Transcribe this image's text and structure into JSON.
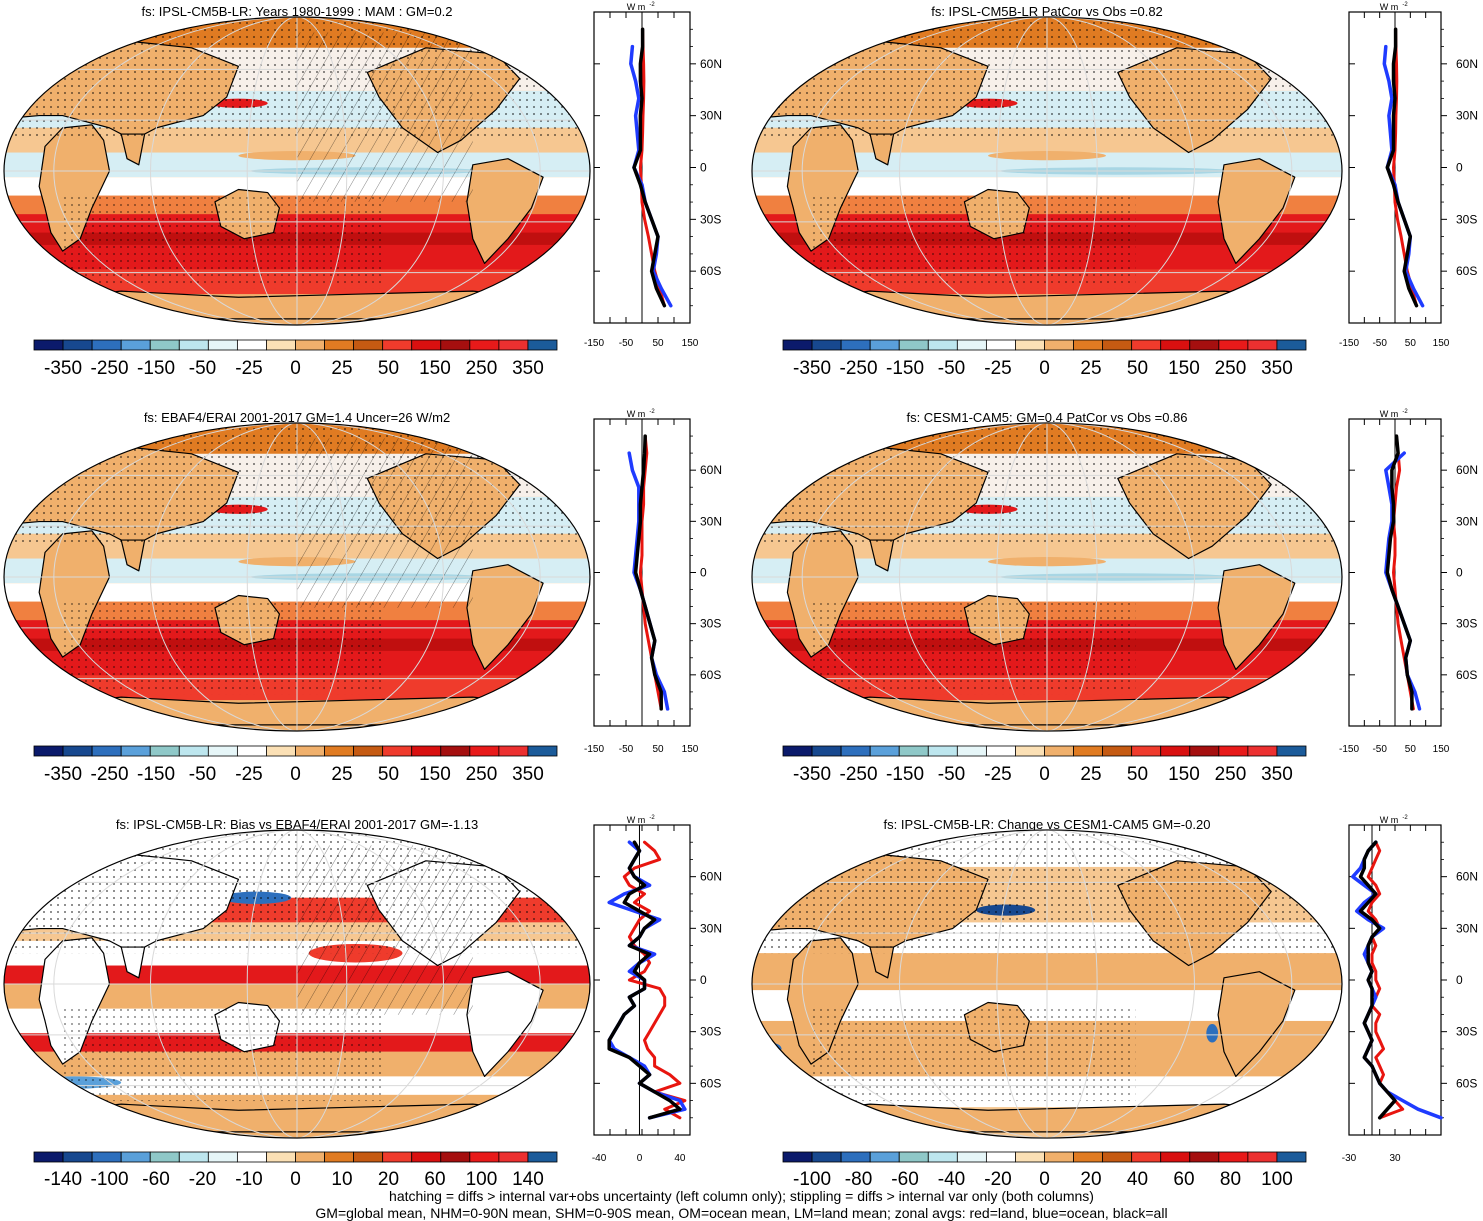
{
  "colors": {
    "blue": "#1f3bff",
    "red": "#e8150f",
    "black": "#000000",
    "scale_7": [
      "#0b1a6b",
      "#17488f",
      "#2d6fbd",
      "#5aa0da",
      "#8fc8c8",
      "#bde6ee",
      "#e6f6f8",
      "#ffffff",
      "#fbe0b5",
      "#f0b06c",
      "#e07b22",
      "#c55a12",
      "#ef3b2c",
      "#d91010",
      "#a50f0f",
      "#e81a1a",
      "#ec3030",
      "#1b5b9a"
    ]
  },
  "panels": [
    {
      "id": "top-left",
      "title": "fs: IPSL-CM5B-LR: Years 1980-1999 : MAM : GM=0.2",
      "colorbar_labels": [
        "-350",
        "-250",
        "-150",
        "-50",
        "-25",
        "0",
        "25",
        "50",
        "150",
        "250",
        "350"
      ],
      "zonal_ticks": [
        "-150",
        "-50",
        "50",
        "150"
      ],
      "zonal_range": [
        -150,
        150
      ],
      "pattern": "mean",
      "hatched": true,
      "stippled": true,
      "zonal": {
        "lat": [
          80,
          70,
          60,
          50,
          40,
          30,
          20,
          10,
          0,
          -10,
          -20,
          -30,
          -40,
          -50,
          -60,
          -70,
          -80
        ],
        "land": [
          2,
          3,
          5,
          6,
          5,
          3,
          2,
          0,
          -5,
          -2,
          0,
          8,
          20,
          30,
          40,
          55,
          70
        ],
        "ocean": [
          null,
          -30,
          -35,
          -20,
          -10,
          -20,
          -15,
          -10,
          -25,
          0,
          10,
          30,
          50,
          45,
          35,
          60,
          90
        ],
        "all": [
          2,
          2,
          -5,
          -5,
          0,
          -5,
          -5,
          -5,
          -25,
          -5,
          10,
          30,
          50,
          40,
          30,
          45,
          70
        ]
      }
    },
    {
      "id": "top-right",
      "title": "fs: IPSL-CM5B-LR PatCor vs Obs =0.82",
      "colorbar_labels": [
        "-350",
        "-250",
        "-150",
        "-50",
        "-25",
        "0",
        "25",
        "50",
        "150",
        "250",
        "350"
      ],
      "zonal_ticks": [
        "-150",
        "-50",
        "50",
        "150"
      ],
      "zonal_range": [
        -150,
        150
      ],
      "pattern": "mean",
      "hatched": false,
      "stippled": true,
      "zonal": {
        "lat": [
          80,
          70,
          60,
          50,
          40,
          30,
          20,
          10,
          0,
          -10,
          -20,
          -30,
          -40,
          -50,
          -60,
          -70,
          -80
        ],
        "land": [
          2,
          3,
          5,
          6,
          5,
          3,
          2,
          0,
          -5,
          -2,
          0,
          8,
          20,
          30,
          40,
          55,
          70
        ],
        "ocean": [
          null,
          -30,
          -35,
          -20,
          -10,
          -20,
          -15,
          -10,
          -25,
          0,
          10,
          30,
          50,
          45,
          35,
          60,
          90
        ],
        "all": [
          2,
          2,
          -5,
          -5,
          0,
          -5,
          -5,
          -5,
          -25,
          -5,
          10,
          30,
          50,
          40,
          30,
          45,
          70
        ]
      }
    },
    {
      "id": "middle-left",
      "title": "fs: EBAF4/ERAI 2001-2017 GM=1.4 Uncer=26 W/m2",
      "colorbar_labels": [
        "-350",
        "-250",
        "-150",
        "-50",
        "-25",
        "0",
        "25",
        "50",
        "150",
        "250",
        "350"
      ],
      "zonal_ticks": [
        "-150",
        "-50",
        "50",
        "150"
      ],
      "zonal_range": [
        -150,
        150
      ],
      "pattern": "mean",
      "hatched": true,
      "stippled": true,
      "zonal": {
        "lat": [
          80,
          70,
          60,
          50,
          40,
          30,
          20,
          10,
          0,
          -10,
          -20,
          -30,
          -40,
          -50,
          -60,
          -70,
          -80
        ],
        "land": [
          10,
          15,
          10,
          5,
          5,
          0,
          0,
          0,
          -5,
          0,
          5,
          10,
          20,
          30,
          40,
          50,
          60
        ],
        "ocean": [
          null,
          -40,
          -30,
          -10,
          -10,
          -10,
          -15,
          -20,
          -25,
          -5,
          10,
          25,
          40,
          30,
          45,
          70,
          80
        ],
        "all": [
          10,
          8,
          5,
          0,
          -5,
          -5,
          -10,
          -15,
          -20,
          -5,
          10,
          25,
          40,
          30,
          40,
          60,
          60
        ]
      }
    },
    {
      "id": "middle-right",
      "title": "fs: CESM1-CAM5: GM=0.4 PatCor vs Obs =0.86",
      "colorbar_labels": [
        "-350",
        "-250",
        "-150",
        "-50",
        "-25",
        "0",
        "25",
        "50",
        "150",
        "250",
        "350"
      ],
      "zonal_ticks": [
        "-150",
        "-50",
        "50",
        "150"
      ],
      "zonal_range": [
        -150,
        150
      ],
      "pattern": "mean",
      "hatched": false,
      "stippled": true,
      "zonal": {
        "lat": [
          80,
          70,
          60,
          50,
          40,
          30,
          20,
          10,
          0,
          -10,
          -20,
          -30,
          -40,
          -50,
          -60,
          -70,
          -80
        ],
        "land": [
          5,
          10,
          15,
          5,
          0,
          -5,
          0,
          0,
          -5,
          0,
          5,
          10,
          20,
          30,
          40,
          50,
          60
        ],
        "ocean": [
          null,
          30,
          -30,
          -20,
          -10,
          -10,
          -20,
          -25,
          -30,
          -10,
          10,
          30,
          50,
          35,
          40,
          65,
          80
        ],
        "all": [
          5,
          10,
          -10,
          -10,
          -5,
          -5,
          -15,
          -20,
          -25,
          -10,
          10,
          30,
          50,
          35,
          40,
          55,
          55
        ]
      }
    },
    {
      "id": "bottom-left",
      "title": "fs: IPSL-CM5B-LR: Bias vs EBAF4/ERAI 2001-2017 GM=-1.13",
      "colorbar_labels": [
        "-140",
        "-100",
        "-60",
        "-20",
        "-10",
        "0",
        "10",
        "20",
        "60",
        "100",
        "140"
      ],
      "zonal_ticks": [
        "-40",
        "0",
        "40"
      ],
      "zonal_range": [
        -45,
        50
      ],
      "pattern": "bias",
      "hatched": true,
      "stippled": true,
      "zonal": {
        "lat": [
          80,
          75,
          70,
          65,
          60,
          55,
          50,
          45,
          40,
          35,
          30,
          25,
          20,
          15,
          10,
          5,
          0,
          -5,
          -10,
          -15,
          -20,
          -25,
          -30,
          -35,
          -40,
          -45,
          -50,
          -55,
          -60,
          -65,
          -70,
          -75,
          -80
        ],
        "land": [
          5,
          15,
          20,
          -5,
          -15,
          -10,
          5,
          -5,
          10,
          0,
          -5,
          -10,
          -5,
          5,
          10,
          5,
          -10,
          20,
          25,
          25,
          20,
          15,
          10,
          5,
          8,
          15,
          15,
          30,
          40,
          15,
          45,
          25,
          40
        ],
        "ocean": [
          -10,
          0,
          -5,
          -10,
          -5,
          10,
          -15,
          -30,
          -5,
          20,
          5,
          0,
          -10,
          15,
          0,
          -10,
          5,
          5,
          -10,
          -5,
          -15,
          -20,
          -25,
          -30,
          -25,
          -10,
          5,
          10,
          0,
          15,
          40,
          45,
          10
        ],
        "all": [
          -5,
          0,
          -5,
          -10,
          -5,
          5,
          -10,
          -15,
          0,
          15,
          5,
          0,
          -10,
          10,
          0,
          -5,
          5,
          5,
          -10,
          -5,
          -15,
          -20,
          -25,
          -30,
          -30,
          -10,
          0,
          10,
          0,
          15,
          30,
          40,
          10
        ]
      }
    },
    {
      "id": "bottom-right",
      "title": "fs: IPSL-CM5B-LR: Change vs CESM1-CAM5 GM=-0.20",
      "colorbar_labels": [
        "-100",
        "-80",
        "-60",
        "-40",
        "-20",
        "0",
        "20",
        "40",
        "60",
        "80",
        "100"
      ],
      "zonal_ticks": [
        "-30",
        "30"
      ],
      "zonal_range": [
        -30,
        90
      ],
      "pattern": "change",
      "hatched": false,
      "stippled": true,
      "zonal": {
        "lat": [
          80,
          75,
          70,
          65,
          60,
          55,
          50,
          45,
          40,
          35,
          30,
          25,
          20,
          15,
          10,
          5,
          0,
          -5,
          -10,
          -15,
          -20,
          -25,
          -30,
          -35,
          -40,
          -45,
          -50,
          -55,
          -60,
          -65,
          -70,
          -75,
          -80
        ],
        "land": [
          5,
          10,
          5,
          0,
          -5,
          5,
          10,
          0,
          -5,
          5,
          10,
          0,
          5,
          0,
          0,
          5,
          5,
          10,
          5,
          0,
          10,
          5,
          5,
          10,
          15,
          5,
          10,
          15,
          10,
          20,
          30,
          40,
          10
        ],
        "ocean": [
          5,
          -5,
          -10,
          -15,
          -25,
          -10,
          5,
          -10,
          -20,
          -5,
          15,
          0,
          -5,
          -10,
          -5,
          0,
          -5,
          0,
          5,
          0,
          -5,
          -10,
          -5,
          0,
          -5,
          -10,
          0,
          5,
          10,
          20,
          40,
          60,
          90
        ],
        "all": [
          5,
          -5,
          -10,
          -10,
          -15,
          -5,
          5,
          -5,
          -15,
          0,
          10,
          0,
          -5,
          -5,
          -5,
          0,
          -5,
          0,
          0,
          0,
          -5,
          -10,
          -5,
          0,
          -5,
          -10,
          0,
          5,
          10,
          20,
          30,
          20,
          10
        ]
      }
    }
  ],
  "footer": {
    "line1": "hatching = diffs > internal var+obs uncertainty (left column only); stippling = diffs > internal var only (both columns)",
    "line2": "GM=global mean, NHM=0-90N mean, SHM=0-90S mean, OM=ocean mean, LM=land mean; zonal avgs: red=land, blue=ocean, black=all"
  },
  "chart_data": [
    {
      "type": "heatmap",
      "title": "fs: IPSL-CM5B-LR: Years 1980-1999 : MAM : GM=0.2",
      "colorbar": [
        "-350",
        "-250",
        "-150",
        "-50",
        "-25",
        "0",
        "25",
        "50",
        "150",
        "250",
        "350"
      ],
      "ylabel": "W m-2",
      "lat_ticks": [
        "60N",
        "30N",
        "0",
        "30S",
        "60S"
      ]
    },
    {
      "type": "heatmap",
      "title": "fs: IPSL-CM5B-LR PatCor vs Obs =0.82",
      "colorbar": [
        "-350",
        "-250",
        "-150",
        "-50",
        "-25",
        "0",
        "25",
        "50",
        "150",
        "250",
        "350"
      ]
    },
    {
      "type": "heatmap",
      "title": "fs: EBAF4/ERAI 2001-2017 GM=1.4 Uncer=26 W/m2",
      "colorbar": [
        "-350",
        "-250",
        "-150",
        "-50",
        "-25",
        "0",
        "25",
        "50",
        "150",
        "250",
        "350"
      ]
    },
    {
      "type": "heatmap",
      "title": "fs: CESM1-CAM5: GM=0.4 PatCor vs Obs =0.86",
      "colorbar": [
        "-350",
        "-250",
        "-150",
        "-50",
        "-25",
        "0",
        "25",
        "50",
        "150",
        "250",
        "350"
      ]
    },
    {
      "type": "heatmap",
      "title": "fs: IPSL-CM5B-LR: Bias vs EBAF4/ERAI 2001-2017 GM=-1.13",
      "colorbar": [
        "-140",
        "-100",
        "-60",
        "-20",
        "-10",
        "0",
        "10",
        "20",
        "60",
        "100",
        "140"
      ]
    },
    {
      "type": "heatmap",
      "title": "fs: IPSL-CM5B-LR: Change vs CESM1-CAM5 GM=-0.20",
      "colorbar": [
        "-100",
        "-80",
        "-60",
        "-40",
        "-20",
        "0",
        "20",
        "40",
        "60",
        "80",
        "100"
      ]
    }
  ],
  "lat_labels": [
    "60N",
    "30N",
    "0",
    "30S",
    "60S"
  ],
  "unit_label": "W m",
  "unit_exp": "-2"
}
